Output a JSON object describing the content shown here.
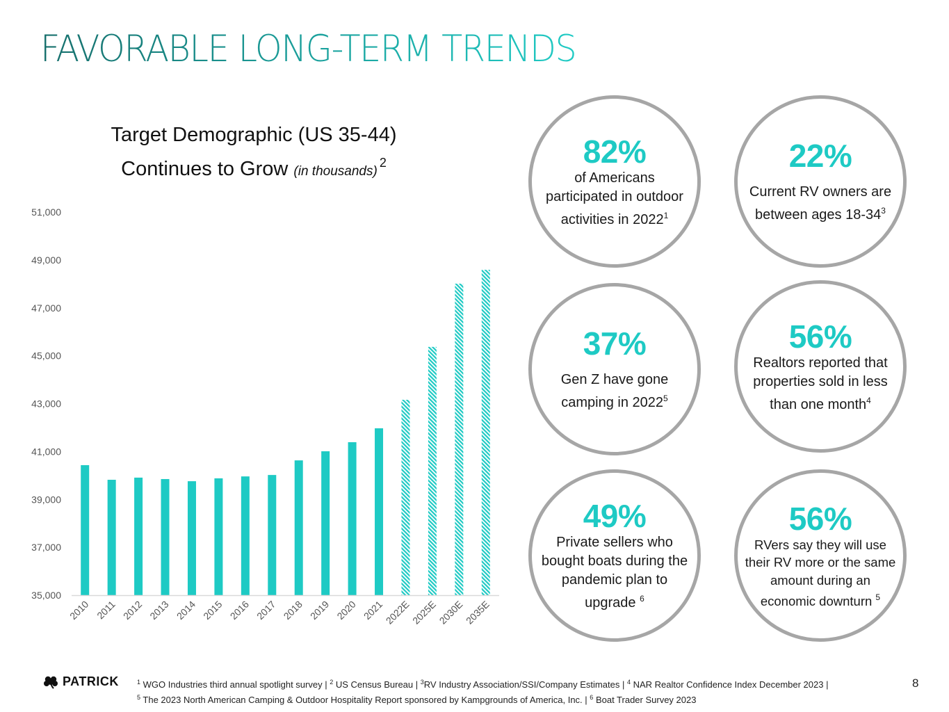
{
  "page": {
    "title": "FAVORABLE LONG-TERM TRENDS",
    "number": "8"
  },
  "colors": {
    "accent": "#1ecac4",
    "title_gradient_start": "#176f6c",
    "title_gradient_end": "#20cbc5",
    "circle_border": "#a6a6a6",
    "axis_line": "#d9d9d9"
  },
  "chart_title": {
    "line1": "Target Demographic (US 35-44)",
    "line2": "Continues to Grow",
    "units": "(in thousands)",
    "footnote_ref": "2"
  },
  "chart_data": {
    "type": "bar",
    "title": "Target Demographic (US 35-44) Continues to Grow (in thousands)",
    "xlabel": "",
    "ylabel": "",
    "ylim": [
      35000,
      51000
    ],
    "yticks": [
      35000,
      37000,
      39000,
      41000,
      43000,
      45000,
      47000,
      49000,
      51000
    ],
    "ytick_labels": [
      "35,000",
      "37,000",
      "39,000",
      "41,000",
      "43,000",
      "45,000",
      "47,000",
      "49,000",
      "51,000"
    ],
    "grid": false,
    "legend": "none",
    "categories": [
      "2010",
      "2011",
      "2012",
      "2013",
      "2014",
      "2015",
      "2016",
      "2017",
      "2018",
      "2019",
      "2020",
      "2021",
      "2022E",
      "2025E",
      "2030E",
      "2035E"
    ],
    "values": [
      40430,
      39820,
      39910,
      39850,
      39760,
      39880,
      39960,
      40020,
      40630,
      41010,
      41390,
      41970,
      43160,
      45370,
      48010,
      48590
    ],
    "estimated": [
      false,
      false,
      false,
      false,
      false,
      false,
      false,
      false,
      false,
      false,
      false,
      false,
      true,
      true,
      true,
      true
    ],
    "bar_color": "#1ecac4",
    "estimated_style": "hatched"
  },
  "stats": [
    {
      "value": "82%",
      "lines": [
        "of Americans",
        "participated in outdoor",
        "activities in 2022"
      ],
      "footnote": "1"
    },
    {
      "value": "22%",
      "lines": [
        "Current RV owners are",
        "between ages 18-34"
      ],
      "footnote": "3"
    },
    {
      "value": "37%",
      "lines": [
        "Gen Z have gone",
        "camping in 2022"
      ],
      "footnote": "5"
    },
    {
      "value": "56%",
      "lines": [
        "Realtors reported that",
        "properties sold in less",
        "than one month"
      ],
      "footnote": "4"
    },
    {
      "value": "49%",
      "lines": [
        "Private sellers who",
        "bought boats during the",
        "pandemic plan to",
        "upgrade"
      ],
      "footnote": "6"
    },
    {
      "value": "56%",
      "lines": [
        "RVers say they will use",
        "their RV more or the same",
        "amount during an",
        "economic downturn"
      ],
      "footnote": "5"
    }
  ],
  "footer": {
    "logo_text": "PATRICK",
    "logo_icon": "shamrock-icon",
    "footnotes": [
      {
        "ref": "1",
        "text": "WGO Industries third annual spotlight survey |"
      },
      {
        "ref": "2",
        "text": "US Census Bureau |"
      },
      {
        "ref": "3",
        "text": "RV Industry Association/SSI/Company Estimates  |"
      },
      {
        "ref": "4",
        "text": "NAR Realtor Confidence Index December 2023 |"
      },
      {
        "ref": "5",
        "text": "The 2023 North American Camping & Outdoor Hospitality Report sponsored by Kampgrounds of America, Inc. |"
      },
      {
        "ref": "6",
        "text": "Boat Trader Survey 2023"
      }
    ]
  }
}
